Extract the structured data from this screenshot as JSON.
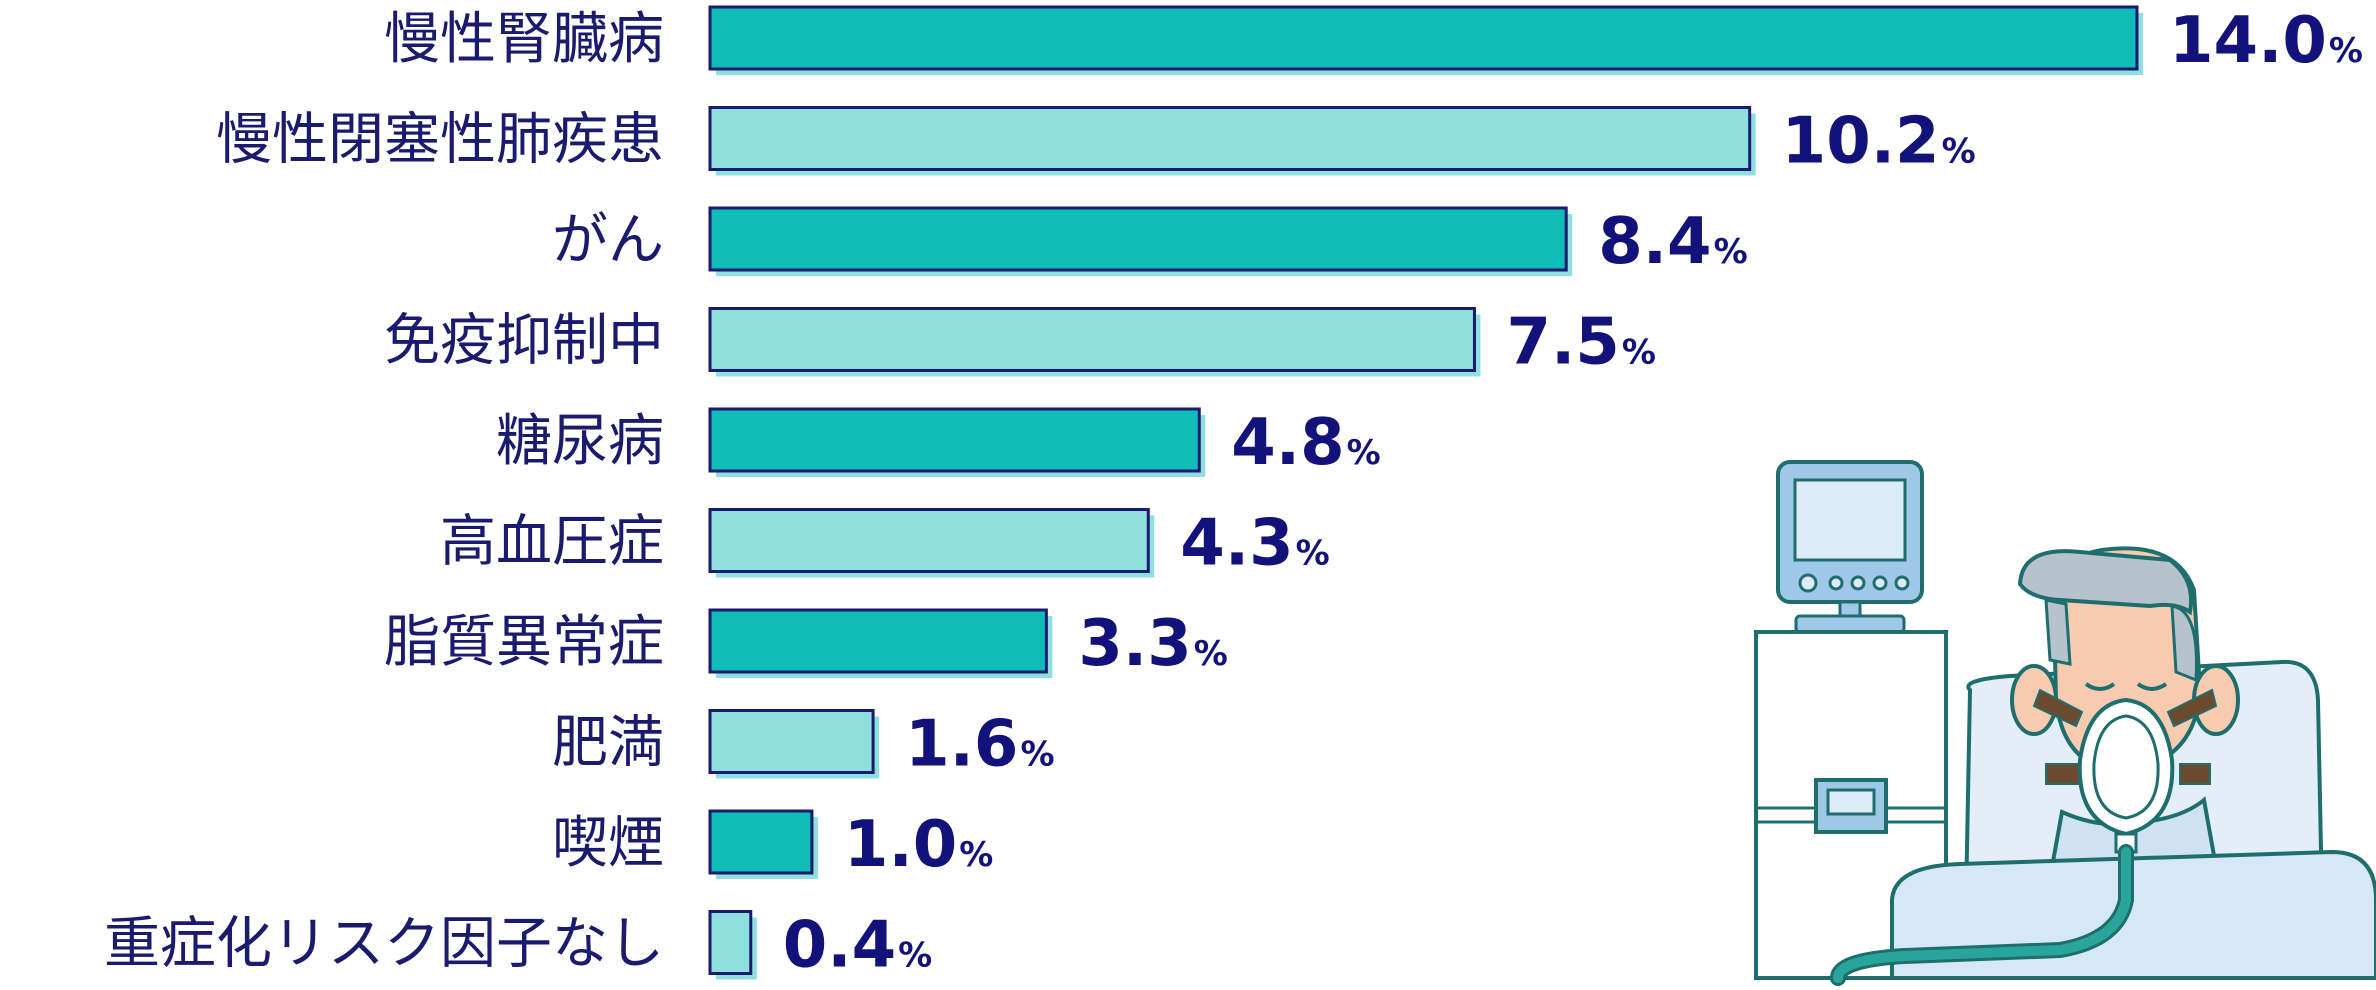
{
  "chart_data": {
    "type": "bar",
    "orientation": "horizontal",
    "categories": [
      "慢性腎臓病",
      "慢性閉塞性肺疾患",
      "がん",
      "免疫抑制中",
      "糖尿病",
      "高血圧症",
      "脂質異常症",
      "肥満",
      "喫煙",
      "重症化リスク因子なし"
    ],
    "values": [
      14.0,
      10.2,
      8.4,
      7.5,
      4.8,
      4.3,
      3.3,
      1.6,
      1.0,
      0.4
    ],
    "value_labels": [
      "14.0",
      "10.2",
      "8.4",
      "7.5",
      "4.8",
      "4.3",
      "3.3",
      "1.6",
      "1.0",
      "0.4"
    ],
    "unit": "%",
    "xlim": [
      0,
      14.0
    ],
    "grid": false,
    "colors": {
      "bar_dark": "#10bcb8",
      "bar_light": "#8de0dd",
      "bar_border": "#1a1a6e",
      "text": "#12127a"
    }
  },
  "illustration": {
    "subject": "patient-on-ventilator-icon"
  }
}
